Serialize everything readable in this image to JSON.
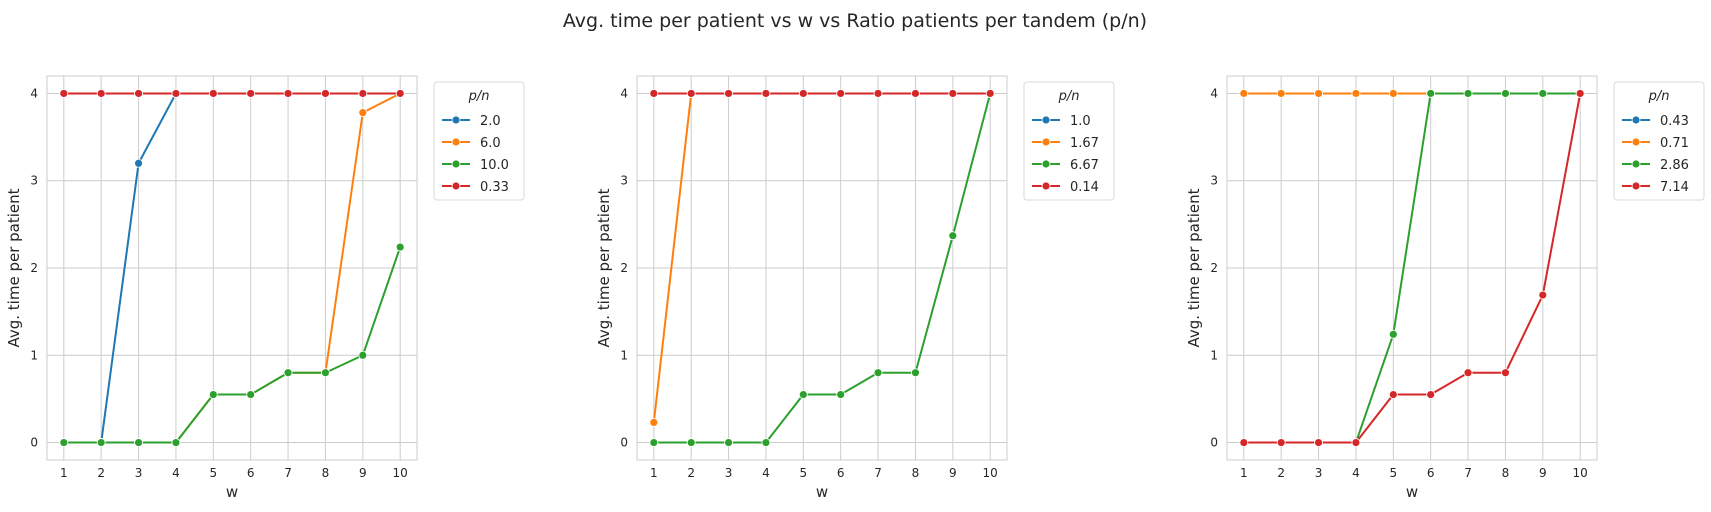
{
  "title": "Avg. time per patient vs w vs Ratio patients per tandem (p/n)",
  "chart_data": [
    {
      "type": "line",
      "xlabel": "w",
      "ylabel": "Avg. time per patient",
      "x": [
        1,
        2,
        3,
        4,
        5,
        6,
        7,
        8,
        9,
        10
      ],
      "xlim": [
        0.55,
        10.45
      ],
      "ylim": [
        -0.2,
        4.2
      ],
      "yticks": [
        0,
        1,
        2,
        3,
        4
      ],
      "grid": true,
      "legend_title": "p/n",
      "legend_position": "outside-right",
      "series": [
        {
          "name": "2.0",
          "color": "#1f77b4",
          "values": [
            0,
            0,
            3.2,
            4.0,
            null,
            null,
            null,
            null,
            null,
            null
          ]
        },
        {
          "name": "6.0",
          "color": "#ff7f0e",
          "values": [
            0,
            0,
            0,
            0,
            0.55,
            0.55,
            0.8,
            0.8,
            3.78,
            4.0
          ]
        },
        {
          "name": "10.0",
          "color": "#2ca02c",
          "values": [
            0,
            0,
            0,
            0,
            0.55,
            0.55,
            0.8,
            0.8,
            1.0,
            2.24
          ]
        },
        {
          "name": "0.33",
          "color": "#d62728",
          "values": [
            4,
            4,
            4,
            4,
            4,
            4,
            4,
            4,
            4,
            4
          ]
        }
      ]
    },
    {
      "type": "line",
      "xlabel": "w",
      "ylabel": "Avg. time per patient",
      "x": [
        1,
        2,
        3,
        4,
        5,
        6,
        7,
        8,
        9,
        10
      ],
      "xlim": [
        0.55,
        10.45
      ],
      "ylim": [
        -0.2,
        4.2
      ],
      "yticks": [
        0,
        1,
        2,
        3,
        4
      ],
      "grid": true,
      "legend_title": "p/n",
      "legend_position": "outside-right",
      "series": [
        {
          "name": "1.0",
          "color": "#1f77b4",
          "values": [
            4,
            4,
            4,
            4,
            4,
            4,
            4,
            4,
            4,
            4
          ]
        },
        {
          "name": "1.67",
          "color": "#ff7f0e",
          "values": [
            0.23,
            4.0,
            null,
            null,
            null,
            null,
            null,
            null,
            null,
            null
          ]
        },
        {
          "name": "6.67",
          "color": "#2ca02c",
          "values": [
            0,
            0,
            0,
            0,
            0.55,
            0.55,
            0.8,
            0.8,
            2.37,
            4.0
          ]
        },
        {
          "name": "0.14",
          "color": "#d62728",
          "values": [
            4,
            4,
            4,
            4,
            4,
            4,
            4,
            4,
            4,
            4
          ]
        }
      ]
    },
    {
      "type": "line",
      "xlabel": "w",
      "ylabel": "Avg. time per patient",
      "x": [
        1,
        2,
        3,
        4,
        5,
        6,
        7,
        8,
        9,
        10
      ],
      "xlim": [
        0.55,
        10.45
      ],
      "ylim": [
        -0.2,
        4.2
      ],
      "yticks": [
        0,
        1,
        2,
        3,
        4
      ],
      "grid": true,
      "legend_title": "p/n",
      "legend_position": "outside-right",
      "series": [
        {
          "name": "0.43",
          "color": "#1f77b4",
          "values": [
            4,
            4,
            4,
            4,
            4,
            4,
            4,
            4,
            4,
            4
          ]
        },
        {
          "name": "0.71",
          "color": "#ff7f0e",
          "values": [
            4,
            4,
            4,
            4,
            4,
            4,
            4,
            4,
            4,
            4
          ]
        },
        {
          "name": "2.86",
          "color": "#2ca02c",
          "values": [
            0,
            0,
            0,
            0,
            1.24,
            4.0,
            4,
            4,
            4,
            4
          ]
        },
        {
          "name": "7.14",
          "color": "#d62728",
          "values": [
            0,
            0,
            0,
            0,
            0.55,
            0.55,
            0.8,
            0.8,
            1.69,
            4.0
          ]
        }
      ]
    }
  ]
}
